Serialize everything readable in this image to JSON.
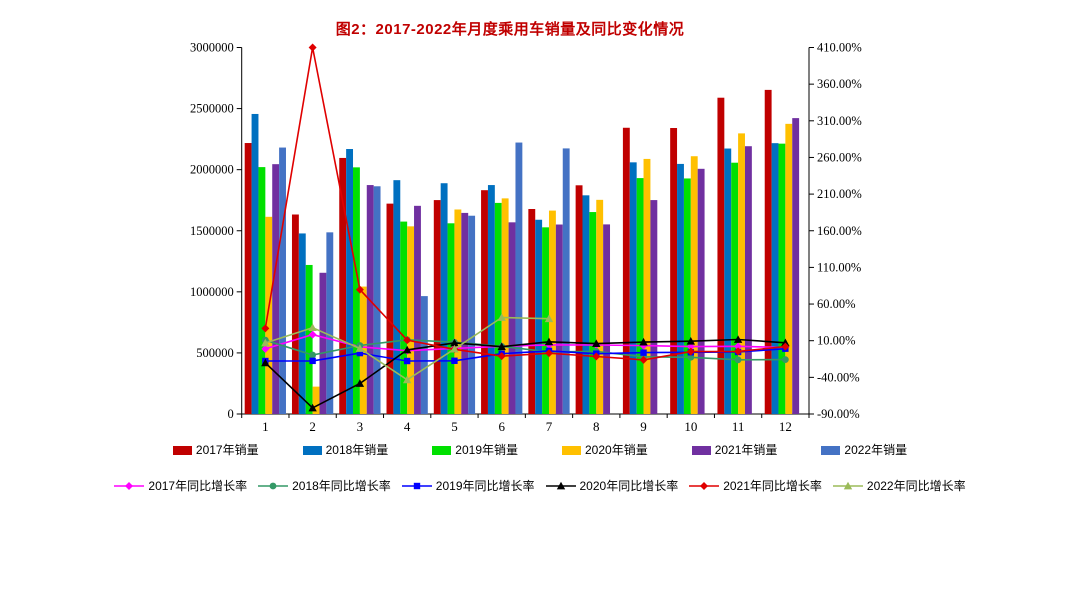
{
  "title": "图2：2017-2022年月度乘用车销量及同比变化情况",
  "title_color": "#c00000",
  "axis_color": "#000000",
  "chart_data": {
    "type": "bar+line combo",
    "title": "图2：2017-2022年月度乘用车销量及同比变化情况",
    "categories": [
      "1",
      "2",
      "3",
      "4",
      "5",
      "6",
      "7",
      "8",
      "9",
      "10",
      "11",
      "12"
    ],
    "grid": false,
    "legend_position": "bottom",
    "left_axis": {
      "min": 0,
      "max": 3000000,
      "step": 500000,
      "tick_labels": [
        "0",
        "500000",
        "1000000",
        "1500000",
        "2000000",
        "2500000",
        "3000000"
      ]
    },
    "right_axis": {
      "min": -90,
      "max": 410,
      "step": 50,
      "tick_labels": [
        "-90.00%",
        "-40.00%",
        "10.00%",
        "60.00%",
        "110.00%",
        "160.00%",
        "210.00%",
        "260.00%",
        "310.00%",
        "360.00%",
        "410.00%"
      ]
    },
    "bar_series": [
      {
        "name": "2017年销量",
        "color": "#c00000",
        "values": [
          2218000,
          1633000,
          2096000,
          1722000,
          1751000,
          1832000,
          1678000,
          1872000,
          2343000,
          2341000,
          2589000,
          2653000
        ]
      },
      {
        "name": "2018年销量",
        "color": "#0070c0",
        "values": [
          2456000,
          1478000,
          2169000,
          1914000,
          1889000,
          1874000,
          1590000,
          1790000,
          2060000,
          2047000,
          2173000,
          2217000
        ]
      },
      {
        "name": "2019年销量",
        "color": "#00e000",
        "values": [
          2021000,
          1220000,
          2019000,
          1575000,
          1561000,
          1728000,
          1528000,
          1653000,
          1931000,
          1928000,
          2057000,
          2213000
        ]
      },
      {
        "name": "2020年销量",
        "color": "#ffc000",
        "values": [
          1614000,
          224000,
          1043000,
          1536000,
          1674000,
          1765000,
          1665000,
          1753000,
          2088000,
          2110000,
          2297000,
          2375000
        ]
      },
      {
        "name": "2021年销量",
        "color": "#7030a0",
        "values": [
          2045000,
          1156000,
          1874000,
          1704000,
          1646000,
          1569000,
          1551000,
          1552000,
          1751000,
          2007000,
          2192000,
          2422000
        ]
      },
      {
        "name": "2022年销量",
        "color": "#4472c4",
        "values": [
          2181000,
          1487000,
          1864000,
          965000,
          1623000,
          2222000,
          2174000,
          null,
          null,
          null,
          null,
          null
        ]
      }
    ],
    "line_series": [
      {
        "name": "2017年同比增长率",
        "color": "#ff00ff",
        "marker": "diamond",
        "values": [
          -1.1,
          18.3,
          1.7,
          -3.7,
          -0.5,
          2.3,
          4.3,
          4.1,
          3.3,
          2.0,
          2.3,
          0.7
        ]
      },
      {
        "name": "2018年同比增长率",
        "color": "#339966",
        "marker": "circle",
        "values": [
          10.7,
          -9.5,
          3.5,
          11.2,
          7.9,
          2.3,
          -5.3,
          -4.6,
          -12.0,
          -12.6,
          -16.1,
          -15.8
        ]
      },
      {
        "name": "2019年同比增长率",
        "color": "#0000ff",
        "marker": "square",
        "values": [
          -17.7,
          -17.5,
          -6.9,
          -17.7,
          -17.4,
          -7.8,
          -3.9,
          -7.7,
          -6.3,
          -5.8,
          -5.4,
          -0.9
        ]
      },
      {
        "name": "2020年同比增长率",
        "color": "#000000",
        "marker": "triangle",
        "values": [
          -20.2,
          -81.7,
          -48.4,
          -2.6,
          7.0,
          1.8,
          8.5,
          6.0,
          8.1,
          9.3,
          11.6,
          7.2
        ]
      },
      {
        "name": "2021年同比增长率",
        "color": "#e00000",
        "marker": "diamond",
        "values": [
          26.8,
          410.0,
          79.7,
          10.8,
          -1.7,
          -11.1,
          -7.0,
          -11.5,
          -16.2,
          -4.9,
          -4.6,
          2.0
        ]
      },
      {
        "name": "2022年同比增长率",
        "color": "#9bbb59",
        "marker": "triangle",
        "values": [
          6.9,
          27.8,
          -0.6,
          -43.4,
          -1.4,
          41.6,
          40.0,
          null,
          null,
          null,
          null,
          null
        ]
      }
    ]
  }
}
